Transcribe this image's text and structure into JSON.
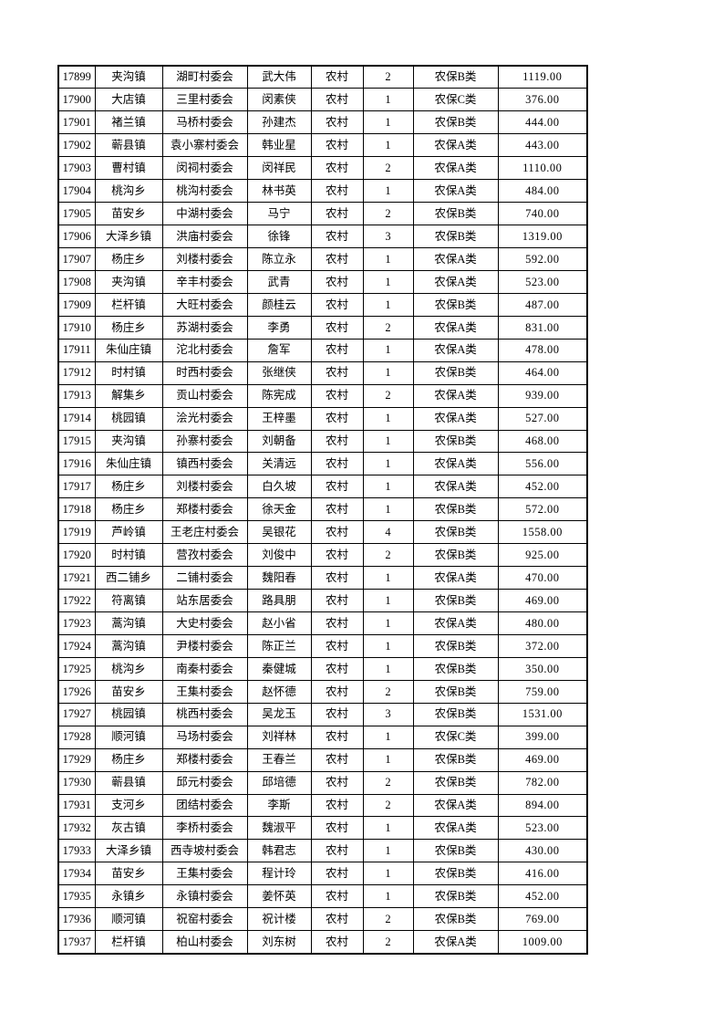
{
  "page": {
    "background_color": "#ffffff",
    "table_border_color": "#000000",
    "text_color": "#000000"
  },
  "table": {
    "column_keys": [
      "serial-number",
      "township",
      "village-committee",
      "person-name",
      "household-type",
      "person-count",
      "insurance-category",
      "amount"
    ],
    "rows": [
      [
        "17899",
        "夹沟镇",
        "湖町村委会",
        "武大伟",
        "农村",
        "2",
        "农保B类",
        "1119.00"
      ],
      [
        "17900",
        "大店镇",
        "三里村委会",
        "闵素侠",
        "农村",
        "1",
        "农保C类",
        "376.00"
      ],
      [
        "17901",
        "褚兰镇",
        "马桥村委会",
        "孙建杰",
        "农村",
        "1",
        "农保B类",
        "444.00"
      ],
      [
        "17902",
        "蕲县镇",
        "袁小寨村委会",
        "韩业星",
        "农村",
        "1",
        "农保A类",
        "443.00"
      ],
      [
        "17903",
        "曹村镇",
        "闵祠村委会",
        "闵祥民",
        "农村",
        "2",
        "农保A类",
        "1110.00"
      ],
      [
        "17904",
        "桃沟乡",
        "桃沟村委会",
        "林书英",
        "农村",
        "1",
        "农保A类",
        "484.00"
      ],
      [
        "17905",
        "苗安乡",
        "中湖村委会",
        "马宁",
        "农村",
        "2",
        "农保B类",
        "740.00"
      ],
      [
        "17906",
        "大泽乡镇",
        "洪庙村委会",
        "徐锋",
        "农村",
        "3",
        "农保B类",
        "1319.00"
      ],
      [
        "17907",
        "杨庄乡",
        "刘楼村委会",
        "陈立永",
        "农村",
        "1",
        "农保A类",
        "592.00"
      ],
      [
        "17908",
        "夹沟镇",
        "辛丰村委会",
        "武青",
        "农村",
        "1",
        "农保A类",
        "523.00"
      ],
      [
        "17909",
        "栏杆镇",
        "大旺村委会",
        "颜桂云",
        "农村",
        "1",
        "农保B类",
        "487.00"
      ],
      [
        "17910",
        "杨庄乡",
        "苏湖村委会",
        "李勇",
        "农村",
        "2",
        "农保A类",
        "831.00"
      ],
      [
        "17911",
        "朱仙庄镇",
        "沱北村委会",
        "詹军",
        "农村",
        "1",
        "农保A类",
        "478.00"
      ],
      [
        "17912",
        "时村镇",
        "时西村委会",
        "张继侠",
        "农村",
        "1",
        "农保B类",
        "464.00"
      ],
      [
        "17913",
        "解集乡",
        "贡山村委会",
        "陈宪成",
        "农村",
        "2",
        "农保A类",
        "939.00"
      ],
      [
        "17914",
        "桃园镇",
        "浍光村委会",
        "王梓墨",
        "农村",
        "1",
        "农保A类",
        "527.00"
      ],
      [
        "17915",
        "夹沟镇",
        "孙寨村委会",
        "刘朝备",
        "农村",
        "1",
        "农保B类",
        "468.00"
      ],
      [
        "17916",
        "朱仙庄镇",
        "镇西村委会",
        "关清远",
        "农村",
        "1",
        "农保A类",
        "556.00"
      ],
      [
        "17917",
        "杨庄乡",
        "刘楼村委会",
        "白久坡",
        "农村",
        "1",
        "农保A类",
        "452.00"
      ],
      [
        "17918",
        "杨庄乡",
        "郑楼村委会",
        "徐天金",
        "农村",
        "1",
        "农保B类",
        "572.00"
      ],
      [
        "17919",
        "芦岭镇",
        "王老庄村委会",
        "吴银花",
        "农村",
        "4",
        "农保B类",
        "1558.00"
      ],
      [
        "17920",
        "时村镇",
        "营孜村委会",
        "刘俊中",
        "农村",
        "2",
        "农保B类",
        "925.00"
      ],
      [
        "17921",
        "西二铺乡",
        "二铺村委会",
        "魏阳春",
        "农村",
        "1",
        "农保A类",
        "470.00"
      ],
      [
        "17922",
        "符离镇",
        "站东居委会",
        "路具朋",
        "农村",
        "1",
        "农保B类",
        "469.00"
      ],
      [
        "17923",
        "蒿沟镇",
        "大史村委会",
        "赵小省",
        "农村",
        "1",
        "农保A类",
        "480.00"
      ],
      [
        "17924",
        "蒿沟镇",
        "尹楼村委会",
        "陈正兰",
        "农村",
        "1",
        "农保B类",
        "372.00"
      ],
      [
        "17925",
        "桃沟乡",
        "南秦村委会",
        "秦健城",
        "农村",
        "1",
        "农保B类",
        "350.00"
      ],
      [
        "17926",
        "苗安乡",
        "王集村委会",
        "赵怀德",
        "农村",
        "2",
        "农保B类",
        "759.00"
      ],
      [
        "17927",
        "桃园镇",
        "桃西村委会",
        "吴龙玉",
        "农村",
        "3",
        "农保B类",
        "1531.00"
      ],
      [
        "17928",
        "顺河镇",
        "马场村委会",
        "刘祥林",
        "农村",
        "1",
        "农保C类",
        "399.00"
      ],
      [
        "17929",
        "杨庄乡",
        "郑楼村委会",
        "王春兰",
        "农村",
        "1",
        "农保B类",
        "469.00"
      ],
      [
        "17930",
        "蕲县镇",
        "邱元村委会",
        "邱培德",
        "农村",
        "2",
        "农保B类",
        "782.00"
      ],
      [
        "17931",
        "支河乡",
        "团结村委会",
        "李斯",
        "农村",
        "2",
        "农保A类",
        "894.00"
      ],
      [
        "17932",
        "灰古镇",
        "李桥村委会",
        "魏淑平",
        "农村",
        "1",
        "农保A类",
        "523.00"
      ],
      [
        "17933",
        "大泽乡镇",
        "西寺坡村委会",
        "韩君志",
        "农村",
        "1",
        "农保B类",
        "430.00"
      ],
      [
        "17934",
        "苗安乡",
        "王集村委会",
        "程计玲",
        "农村",
        "1",
        "农保B类",
        "416.00"
      ],
      [
        "17935",
        "永镇乡",
        "永镇村委会",
        "姜怀英",
        "农村",
        "1",
        "农保B类",
        "452.00"
      ],
      [
        "17936",
        "顺河镇",
        "祝窑村委会",
        "祝计楼",
        "农村",
        "2",
        "农保B类",
        "769.00"
      ],
      [
        "17937",
        "栏杆镇",
        "柏山村委会",
        "刘东树",
        "农村",
        "2",
        "农保A类",
        "1009.00"
      ]
    ]
  }
}
